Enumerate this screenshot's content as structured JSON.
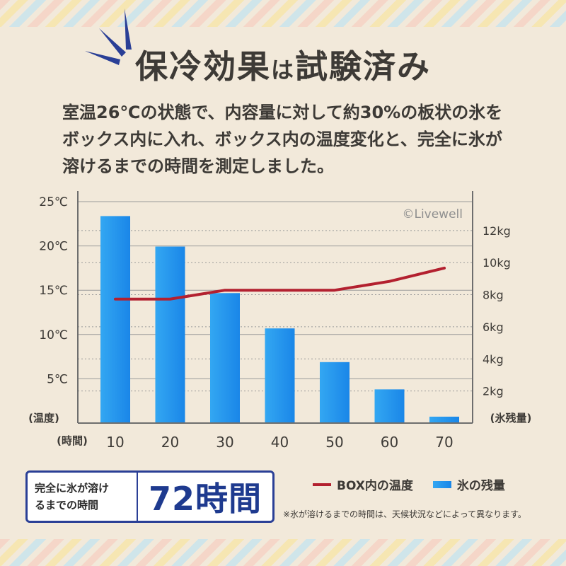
{
  "header": {
    "title_part1": "保冷効果",
    "title_part2": "は",
    "title_part3": "試験済み"
  },
  "description": {
    "line1": "室温26℃の状態で、内容量に対して約30%の板状の氷を",
    "line2": "ボックス内に入れ、ボックス内の温度変化と、完全に氷が",
    "line3": "溶けるまでの時間を測定しました。"
  },
  "chart_data": {
    "type": "bar",
    "watermark": "©Livewell",
    "categories": [
      "10",
      "20",
      "30",
      "40",
      "50",
      "60",
      "70"
    ],
    "x_label": "(時間)",
    "left_axis": {
      "label": "(温度)",
      "range": [
        0,
        25
      ],
      "ticks": [
        5,
        10,
        15,
        20,
        25
      ],
      "tick_labels": [
        "5℃",
        "10℃",
        "15℃",
        "20℃",
        "25℃"
      ]
    },
    "right_axis": {
      "label": "(氷残量)",
      "range": [
        0,
        13.8
      ],
      "ticks": [
        2,
        4,
        6,
        8,
        10,
        12
      ],
      "tick_labels": [
        "2kg",
        "4kg",
        "6kg",
        "8kg",
        "10kg",
        "12kg"
      ]
    },
    "series": [
      {
        "name": "氷の残量",
        "kind": "bar",
        "axis": "right",
        "values": [
          12.9,
          11.0,
          8.1,
          5.9,
          3.8,
          2.1,
          0.4
        ]
      },
      {
        "name": "BOX内の温度",
        "kind": "line",
        "axis": "left",
        "values": [
          14.0,
          14.0,
          15.0,
          15.0,
          15.0,
          16.0,
          17.5
        ]
      }
    ],
    "colors": {
      "bar_top": "#33a7f2",
      "bar_bottom": "#1a86e8",
      "line": "#b3202f",
      "axis": "#6e6e6e",
      "grid": "#9a9a9a"
    }
  },
  "summary": {
    "label_line1": "完全に氷が溶け",
    "label_line2": "るまでの時間",
    "value": "72時間"
  },
  "legend": {
    "line_label": "BOX内の温度",
    "bar_label": "氷の残量"
  },
  "note": "※氷が溶けるまでの時間は、天候状況などによって異なります。"
}
